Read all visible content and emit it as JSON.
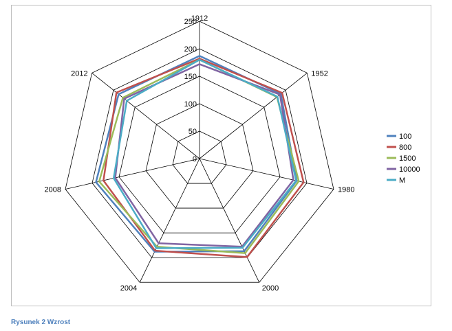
{
  "chart_data": {
    "type": "radar",
    "categories": [
      "1912",
      "1952",
      "1980",
      "2000",
      "2004",
      "2008",
      "2012"
    ],
    "rlim": [
      0,
      250
    ],
    "ticks": [
      0,
      50,
      100,
      150,
      200,
      250
    ],
    "grid": true,
    "legend_position": "right",
    "series": [
      {
        "name": "100",
        "color": "#4f81bd",
        "values": [
          187,
          189,
          181,
          187,
          188,
          193,
          188
        ]
      },
      {
        "name": "800",
        "color": "#c0504d",
        "values": [
          182,
          192,
          194,
          199,
          186,
          179,
          193
        ]
      },
      {
        "name": "1500",
        "color": "#9bbb59",
        "values": [
          180,
          180,
          185,
          191,
          178,
          187,
          178
        ]
      },
      {
        "name": "10000",
        "color": "#8064a2",
        "values": [
          172,
          187,
          175,
          178,
          171,
          157,
          175
        ]
      },
      {
        "name": "M",
        "color": "#4bacc6",
        "values": [
          180,
          181,
          180,
          180,
          181,
          160,
          169
        ]
      }
    ]
  },
  "caption": "Rysunek 2 Wzrost"
}
